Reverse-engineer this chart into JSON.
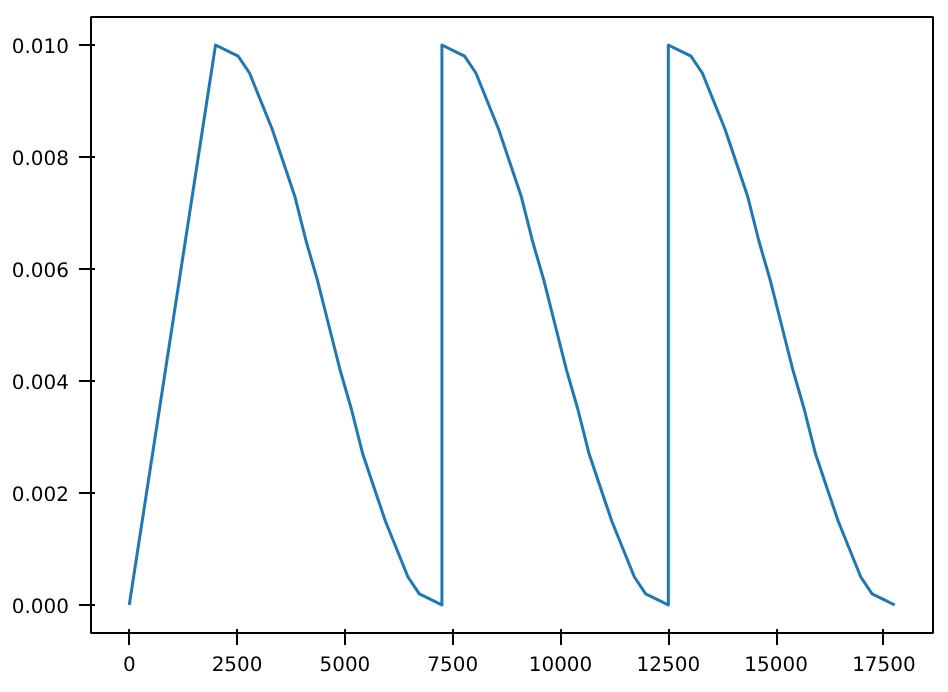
{
  "chart_data": {
    "type": "line",
    "xlim": [
      -887.5,
      18637.5
    ],
    "ylim": [
      -0.0005,
      0.0105
    ],
    "xticks": [
      0,
      2500,
      5000,
      7500,
      10000,
      12500,
      15000,
      17500
    ],
    "yticks": [
      {
        "value": 0,
        "label": "0.000"
      },
      {
        "value": 0.002,
        "label": "0.002"
      },
      {
        "value": 0.004,
        "label": "0.004"
      },
      {
        "value": 0.006,
        "label": "0.006"
      },
      {
        "value": 0.008,
        "label": "0.008"
      },
      {
        "value": 0.01,
        "label": "0.010"
      }
    ],
    "marker": "none",
    "line_style": "solid",
    "series": [
      {
        "color": "#1f77b4",
        "x": [
          0,
          2000,
          2263,
          2525,
          2788,
          3050,
          3313,
          3575,
          3838,
          4100,
          4363,
          4625,
          4888,
          5150,
          5413,
          5675,
          5938,
          6200,
          6463,
          6725,
          6988,
          7250,
          7250,
          7513,
          7775,
          8038,
          8300,
          8563,
          8825,
          9088,
          9350,
          9613,
          9875,
          10138,
          10400,
          10663,
          10925,
          11188,
          11450,
          11713,
          11975,
          12238,
          12500,
          12500,
          12763,
          13025,
          13288,
          13550,
          13813,
          14075,
          14338,
          14600,
          14863,
          15125,
          15388,
          15650,
          15913,
          16175,
          16438,
          16700,
          16963,
          17225,
          17488,
          17750
        ],
        "values": [
          0,
          0.01,
          0.0099,
          0.0098,
          0.0095,
          0.009,
          0.0085,
          0.0079,
          0.0073,
          0.0065,
          0.0058,
          0.005,
          0.0042,
          0.0035,
          0.0027,
          0.0021,
          0.0015,
          0.001,
          0.0005,
          0.0002,
          0.0001,
          0,
          0.01,
          0.0099,
          0.0098,
          0.0095,
          0.009,
          0.0085,
          0.0079,
          0.0073,
          0.0065,
          0.0058,
          0.005,
          0.0042,
          0.0035,
          0.0027,
          0.0021,
          0.0015,
          0.001,
          0.0005,
          0.0002,
          0.0001,
          0,
          0.01,
          0.0099,
          0.0098,
          0.0095,
          0.009,
          0.0085,
          0.0079,
          0.0073,
          0.0065,
          0.0058,
          0.005,
          0.0042,
          0.0035,
          0.0027,
          0.0021,
          0.0015,
          0.001,
          0.0005,
          0.0002,
          0.0001,
          0
        ]
      }
    ]
  }
}
